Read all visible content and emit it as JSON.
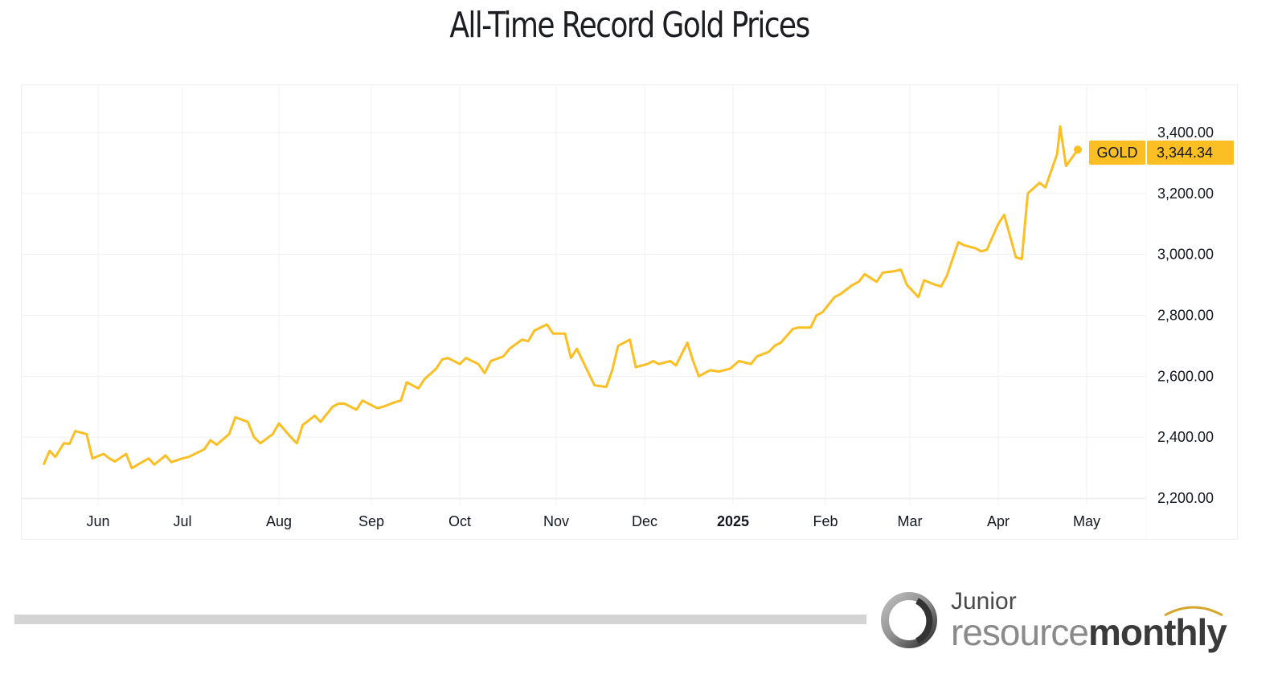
{
  "title": "All-Time Record Gold Prices",
  "badge": {
    "symbol": "GOLD",
    "value": "3,344.34",
    "color": "#fbbf24"
  },
  "footer": {
    "logo_line1": "Junior",
    "logo_line2_light": "resource",
    "logo_line2_bold": "monthly"
  },
  "chart_data": {
    "type": "line",
    "title": "All-Time Record Gold Prices",
    "xlabel": "",
    "ylabel": "",
    "series_name": "GOLD",
    "line_color": "#fbbf24",
    "ylim": [
      2150,
      3520
    ],
    "grid": true,
    "y_ticks": [
      "2,200.00",
      "2,400.00",
      "2,600.00",
      "2,800.00",
      "3,000.00",
      "3,200.00",
      "3,400.00"
    ],
    "x_ticks": [
      {
        "label": "Jun",
        "bold": false
      },
      {
        "label": "Jul",
        "bold": false
      },
      {
        "label": "Aug",
        "bold": false
      },
      {
        "label": "Sep",
        "bold": false
      },
      {
        "label": "Oct",
        "bold": false
      },
      {
        "label": "Nov",
        "bold": false
      },
      {
        "label": "Dec",
        "bold": false
      },
      {
        "label": "2025",
        "bold": true
      },
      {
        "label": "Feb",
        "bold": false
      },
      {
        "label": "Mar",
        "bold": false
      },
      {
        "label": "Apr",
        "bold": false
      },
      {
        "label": "May",
        "bold": false
      }
    ],
    "last_value": 3344.34,
    "x": [
      "2024-05-13",
      "2024-05-15",
      "2024-05-17",
      "2024-05-20",
      "2024-05-22",
      "2024-05-24",
      "2024-05-28",
      "2024-05-30",
      "2024-06-03",
      "2024-06-05",
      "2024-06-07",
      "2024-06-11",
      "2024-06-13",
      "2024-06-17",
      "2024-06-19",
      "2024-06-21",
      "2024-06-25",
      "2024-06-27",
      "2024-07-01",
      "2024-07-03",
      "2024-07-08",
      "2024-07-10",
      "2024-07-12",
      "2024-07-16",
      "2024-07-18",
      "2024-07-22",
      "2024-07-24",
      "2024-07-26",
      "2024-07-30",
      "2024-08-01",
      "2024-08-05",
      "2024-08-07",
      "2024-08-09",
      "2024-08-13",
      "2024-08-15",
      "2024-08-19",
      "2024-08-21",
      "2024-08-23",
      "2024-08-27",
      "2024-08-29",
      "2024-09-03",
      "2024-09-05",
      "2024-09-09",
      "2024-09-11",
      "2024-09-13",
      "2024-09-17",
      "2024-09-19",
      "2024-09-23",
      "2024-09-25",
      "2024-09-27",
      "2024-10-01",
      "2024-10-03",
      "2024-10-07",
      "2024-10-09",
      "2024-10-11",
      "2024-10-15",
      "2024-10-17",
      "2024-10-21",
      "2024-10-23",
      "2024-10-25",
      "2024-10-29",
      "2024-10-31",
      "2024-11-04",
      "2024-11-06",
      "2024-11-08",
      "2024-11-12",
      "2024-11-14",
      "2024-11-18",
      "2024-11-20",
      "2024-11-22",
      "2024-11-26",
      "2024-11-28",
      "2024-12-02",
      "2024-12-04",
      "2024-12-06",
      "2024-12-10",
      "2024-12-12",
      "2024-12-16",
      "2024-12-18",
      "2024-12-20",
      "2024-12-24",
      "2024-12-27",
      "2024-12-31",
      "2025-01-03",
      "2025-01-07",
      "2025-01-09",
      "2025-01-13",
      "2025-01-15",
      "2025-01-17",
      "2025-01-21",
      "2025-01-23",
      "2025-01-27",
      "2025-01-29",
      "2025-01-31",
      "2025-02-04",
      "2025-02-06",
      "2025-02-10",
      "2025-02-12",
      "2025-02-14",
      "2025-02-18",
      "2025-02-20",
      "2025-02-24",
      "2025-02-26",
      "2025-02-28",
      "2025-03-04",
      "2025-03-06",
      "2025-03-10",
      "2025-03-12",
      "2025-03-14",
      "2025-03-18",
      "2025-03-20",
      "2025-03-24",
      "2025-03-26",
      "2025-03-28",
      "2025-04-01",
      "2025-04-03",
      "2025-04-07",
      "2025-04-09",
      "2025-04-11",
      "2025-04-15",
      "2025-04-17",
      "2025-04-21",
      "2025-04-22",
      "2025-04-24",
      "2025-04-28"
    ],
    "values": [
      2312,
      2355,
      2335,
      2380,
      2378,
      2420,
      2410,
      2330,
      2345,
      2330,
      2320,
      2345,
      2298,
      2320,
      2330,
      2310,
      2340,
      2318,
      2330,
      2335,
      2360,
      2390,
      2375,
      2410,
      2465,
      2450,
      2400,
      2380,
      2410,
      2445,
      2400,
      2380,
      2440,
      2470,
      2450,
      2500,
      2510,
      2510,
      2490,
      2520,
      2495,
      2500,
      2515,
      2520,
      2580,
      2560,
      2590,
      2625,
      2655,
      2660,
      2640,
      2660,
      2640,
      2610,
      2650,
      2665,
      2690,
      2720,
      2715,
      2750,
      2770,
      2740,
      2740,
      2660,
      2690,
      2610,
      2570,
      2565,
      2620,
      2700,
      2720,
      2630,
      2640,
      2650,
      2640,
      2650,
      2635,
      2710,
      2650,
      2600,
      2620,
      2615,
      2625,
      2650,
      2640,
      2665,
      2680,
      2700,
      2710,
      2755,
      2760,
      2760,
      2800,
      2810,
      2860,
      2870,
      2900,
      2910,
      2935,
      2910,
      2940,
      2945,
      2950,
      2900,
      2860,
      2915,
      2900,
      2895,
      2930,
      3040,
      3030,
      3020,
      3010,
      3015,
      3100,
      3130,
      2990,
      2985,
      3200,
      3235,
      3220,
      3330,
      3420,
      3290,
      3344
    ]
  }
}
